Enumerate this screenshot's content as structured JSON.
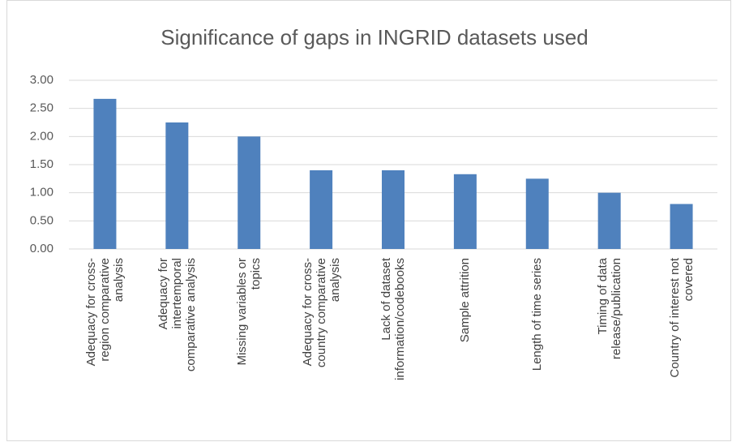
{
  "chart_data": {
    "type": "bar",
    "title": "Significance of gaps in INGRID datasets used",
    "categories": [
      "Adequacy for cross-region comparative analysis",
      "Adequacy for intertemporal comparative analysis",
      "Missing variables or topics",
      "Adequacy for cross-country comparative analysis",
      "Lack of dataset information/codebooks",
      "Sample attrition",
      "Length of time series",
      "Timing of data release/publication",
      "Country of interest not covered"
    ],
    "values": [
      2.67,
      2.25,
      2.0,
      1.4,
      1.4,
      1.33,
      1.25,
      1.0,
      0.8
    ],
    "color": "#4f81bd",
    "ylim": [
      0,
      3
    ],
    "yticks": [
      {
        "value": 0,
        "label": "0.00"
      },
      {
        "value": 0.5,
        "label": "0.50"
      },
      {
        "value": 1,
        "label": "1.00"
      },
      {
        "value": 1.5,
        "label": "1.50"
      },
      {
        "value": 2,
        "label": "2.00"
      },
      {
        "value": 2.5,
        "label": "2.50"
      },
      {
        "value": 3,
        "label": "3.00"
      }
    ],
    "grid": true
  }
}
